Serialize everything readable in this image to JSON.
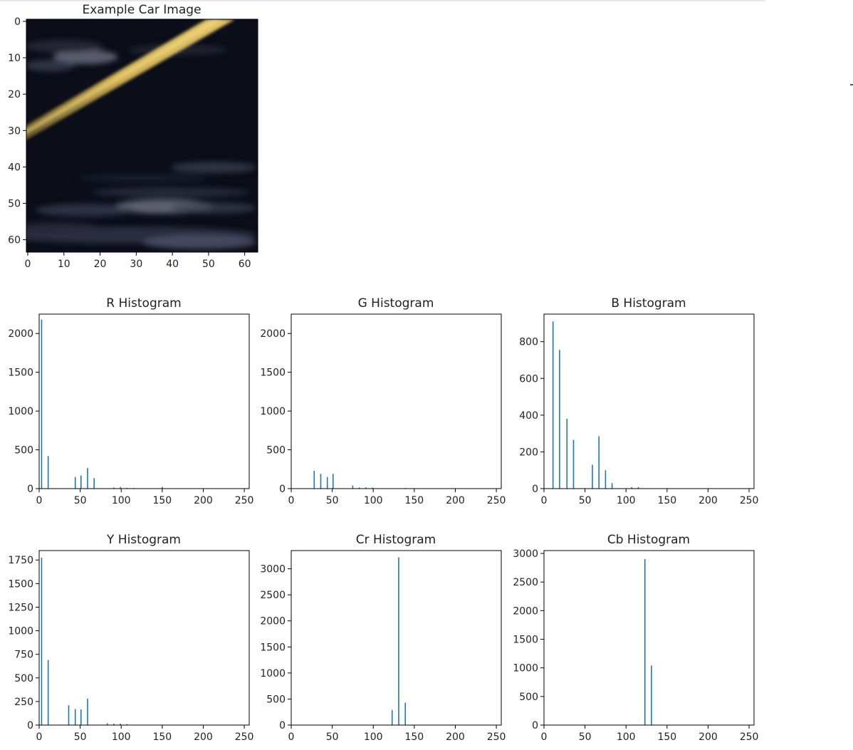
{
  "chart_data": [
    {
      "type": "image",
      "title": "Example Car Image",
      "xlim": [
        0,
        64
      ],
      "ylim": [
        64,
        0
      ],
      "xticks": [
        0,
        10,
        20,
        30,
        40,
        50,
        60
      ],
      "yticks": [
        0,
        10,
        20,
        30,
        40,
        50,
        60
      ]
    },
    {
      "type": "bar",
      "title": "R Histogram",
      "xlim": [
        0,
        256
      ],
      "ylim": [
        0,
        2250
      ],
      "xticks": [
        0,
        50,
        100,
        150,
        200,
        250
      ],
      "yticks": [
        0,
        500,
        1000,
        1500,
        2000
      ],
      "x": [
        3,
        11,
        44,
        51,
        59,
        67,
        91,
        99,
        107,
        115,
        150
      ],
      "values": [
        2180,
        420,
        150,
        170,
        265,
        135,
        15,
        20,
        10,
        8,
        22
      ]
    },
    {
      "type": "bar",
      "title": "G Histogram",
      "xlim": [
        0,
        256
      ],
      "ylim": [
        0,
        2250
      ],
      "xticks": [
        0,
        50,
        100,
        150,
        200,
        250
      ],
      "yticks": [
        0,
        500,
        1000,
        1500,
        2000
      ],
      "x": [
        28,
        36,
        44,
        51,
        75,
        83,
        91,
        99,
        139
      ],
      "values": [
        230,
        190,
        150,
        190,
        40,
        15,
        15,
        12,
        8
      ]
    },
    {
      "type": "bar",
      "title": "B Histogram",
      "xlim": [
        0,
        256
      ],
      "ylim": [
        0,
        950
      ],
      "xticks": [
        0,
        50,
        100,
        150,
        200,
        250
      ],
      "yticks": [
        0,
        200,
        400,
        600,
        800
      ],
      "x": [
        11,
        19,
        28,
        36,
        59,
        67,
        75,
        83,
        107,
        115
      ],
      "values": [
        910,
        755,
        380,
        265,
        130,
        285,
        100,
        30,
        8,
        8
      ]
    },
    {
      "type": "bar",
      "title": "Y Histogram",
      "xlim": [
        0,
        256
      ],
      "ylim": [
        0,
        1850
      ],
      "xticks": [
        0,
        50,
        100,
        150,
        200,
        250
      ],
      "yticks": [
        0,
        250,
        500,
        750,
        1000,
        1250,
        1500,
        1750
      ],
      "x": [
        3,
        11,
        36,
        44,
        51,
        59,
        83,
        91,
        99,
        107
      ],
      "values": [
        1775,
        690,
        210,
        170,
        165,
        280,
        20,
        15,
        15,
        10
      ]
    },
    {
      "type": "bar",
      "title": "Cr Histogram",
      "xlim": [
        0,
        256
      ],
      "ylim": [
        0,
        3350
      ],
      "xticks": [
        0,
        50,
        100,
        150,
        200,
        250
      ],
      "yticks": [
        0,
        500,
        1000,
        1500,
        2000,
        2500,
        3000
      ],
      "x": [
        123,
        131,
        139
      ],
      "values": [
        290,
        3220,
        430
      ]
    },
    {
      "type": "bar",
      "title": "Cb Histogram",
      "xlim": [
        0,
        256
      ],
      "ylim": [
        0,
        3050
      ],
      "xticks": [
        0,
        50,
        100,
        150,
        200,
        250
      ],
      "yticks": [
        0,
        500,
        1000,
        1500,
        2000,
        2500,
        3000
      ],
      "x": [
        123,
        131
      ],
      "values": [
        2900,
        1040
      ]
    }
  ],
  "colors": {
    "bar": "#1f77b4",
    "axis": "#000000"
  }
}
